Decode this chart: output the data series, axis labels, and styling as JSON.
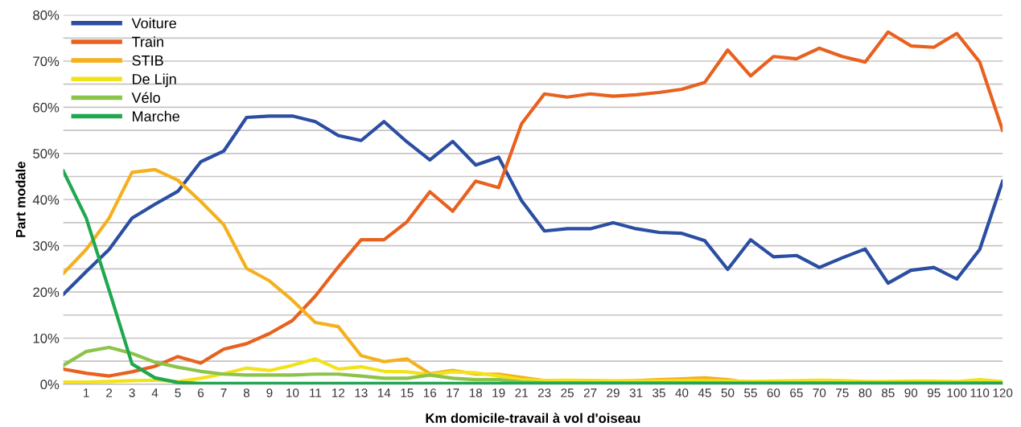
{
  "chart_data": {
    "type": "line",
    "xlabel": "Km domicile-travail à vol d'oiseau",
    "ylabel": "Part modale",
    "categories": [
      null,
      "1",
      "2",
      "3",
      "4",
      "5",
      "6",
      "7",
      "8",
      "9",
      "10",
      "11",
      "12",
      "13",
      "14",
      "15",
      "16",
      "17",
      "18",
      "19",
      "21",
      "23",
      "25",
      "27",
      "29",
      "31",
      "35",
      "40",
      "45",
      "50",
      "55",
      "60",
      "65",
      "70",
      "75",
      "80",
      "85",
      "90",
      "95",
      "100",
      "110",
      "120"
    ],
    "ylim": [
      0,
      80
    ],
    "yticks": [
      {
        "value": 0,
        "label": "0%"
      },
      {
        "value": 5,
        "label": null
      },
      {
        "value": 10,
        "label": "10%"
      },
      {
        "value": 15,
        "label": null
      },
      {
        "value": 20,
        "label": "20%"
      },
      {
        "value": 25,
        "label": null
      },
      {
        "value": 30,
        "label": "30%"
      },
      {
        "value": 35,
        "label": null
      },
      {
        "value": 40,
        "label": "40%"
      },
      {
        "value": 45,
        "label": null
      },
      {
        "value": 50,
        "label": "50%"
      },
      {
        "value": 55,
        "label": null
      },
      {
        "value": 60,
        "label": "60%"
      },
      {
        "value": 65,
        "label": null
      },
      {
        "value": 70,
        "label": "70%"
      },
      {
        "value": 75,
        "label": null
      },
      {
        "value": 80,
        "label": "80%"
      }
    ],
    "grid": "y",
    "legend": "top left",
    "marker": "none",
    "line_style": "solid",
    "series": [
      {
        "name": "Voiture",
        "color": "#2b4ea2",
        "values": [
          19.5,
          24.4,
          29.2,
          36.0,
          39.0,
          41.8,
          48.2,
          50.5,
          57.8,
          58.1,
          58.1,
          56.9,
          53.9,
          52.8,
          56.9,
          52.5,
          48.6,
          52.6,
          47.5,
          49.2,
          39.8,
          33.2,
          33.7,
          33.7,
          35.0,
          33.7,
          32.9,
          32.7,
          31.1,
          24.9,
          31.3,
          27.6,
          27.9,
          25.3,
          27.4,
          29.3,
          21.9,
          24.7,
          25.3,
          22.8,
          29.2,
          44.0
        ]
      },
      {
        "name": "Train",
        "color": "#e8611e",
        "values": [
          3.3,
          2.4,
          1.8,
          2.7,
          3.9,
          6.0,
          4.6,
          7.6,
          8.8,
          11.0,
          13.8,
          19.1,
          25.4,
          31.3,
          31.3,
          35.2,
          41.7,
          37.5,
          44.0,
          42.6,
          56.4,
          62.9,
          62.2,
          62.9,
          62.4,
          62.7,
          63.2,
          63.9,
          65.4,
          72.4,
          66.8,
          71.0,
          70.5,
          72.8,
          71.0,
          69.8,
          76.3,
          73.3,
          73.0,
          76.0,
          69.8,
          55.0
        ]
      },
      {
        "name": "STIB",
        "color": "#f5b01e",
        "values": [
          24.0,
          29.2,
          36.0,
          45.9,
          46.5,
          44.2,
          39.6,
          34.6,
          25.1,
          22.4,
          18.2,
          13.4,
          12.5,
          6.2,
          4.9,
          5.5,
          2.3,
          3.0,
          2.2,
          2.2,
          1.5,
          0.8,
          0.8,
          0.8,
          0.7,
          0.8,
          1.0,
          1.2,
          1.4,
          1.0,
          0.3,
          0.3,
          null,
          null,
          null,
          null,
          null,
          null,
          null,
          null,
          null,
          null
        ]
      },
      {
        "name": "De Lijn",
        "color": "#f2e21a",
        "values": [
          0.5,
          0.5,
          0.6,
          0.8,
          0.9,
          0.6,
          1.3,
          2.3,
          3.5,
          3.0,
          4.1,
          5.5,
          3.3,
          3.8,
          2.8,
          2.7,
          2.1,
          2.7,
          2.5,
          1.8,
          1.0,
          0.8,
          0.9,
          0.8,
          0.7,
          0.7,
          0.7,
          0.8,
          0.8,
          0.7,
          0.6,
          0.7,
          0.8,
          0.9,
          0.8,
          0.6,
          0.6,
          0.7,
          0.7,
          0.6,
          1.0,
          0.6
        ]
      },
      {
        "name": "Vélo",
        "color": "#8cc34a",
        "values": [
          4.1,
          7.1,
          8.0,
          6.7,
          4.8,
          3.7,
          2.8,
          2.2,
          2.0,
          2.0,
          2.0,
          2.2,
          2.2,
          1.8,
          1.3,
          1.3,
          2.0,
          1.3,
          1.0,
          1.0,
          0.5,
          0.3,
          0.3,
          0.3,
          0.3,
          0.3,
          0.3,
          0.3,
          0.3,
          0.3,
          0.3,
          0.3,
          0.3,
          0.3,
          0.3,
          0.3,
          0.3,
          0.3,
          0.3,
          0.3,
          0.3,
          0.3
        ]
      },
      {
        "name": "Marche",
        "color": "#1fa84f",
        "values": [
          46.2,
          36.0,
          20.4,
          4.4,
          1.4,
          0.4,
          0.2,
          0.2,
          0.2,
          0.2,
          0.2,
          0.2,
          0.2,
          0.2,
          0.2,
          0.2,
          0.2,
          0.2,
          0.2,
          0.2,
          0.2,
          0.2,
          0.2,
          0.2,
          0.2,
          0.2,
          0.2,
          0.2,
          0.2,
          0.2,
          0.2,
          0.2,
          0.2,
          0.2,
          0.2,
          0.2,
          0.2,
          0.2,
          0.2,
          0.2,
          0.2,
          0.2
        ]
      }
    ]
  }
}
